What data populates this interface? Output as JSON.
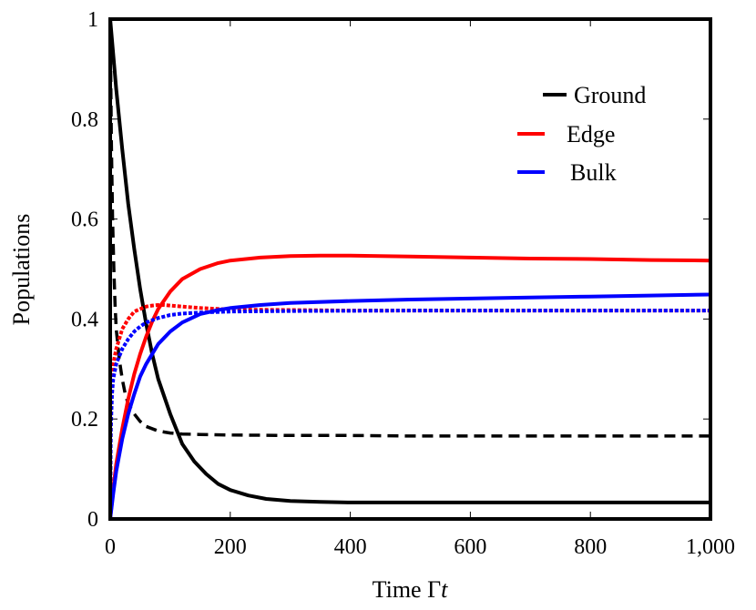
{
  "chart_data": {
    "type": "line",
    "title": "",
    "xlabel_prefix": "Time ",
    "xlabel_greek": "Γ",
    "xlabel_var": "t",
    "ylabel": "Populations",
    "xlim": [
      0,
      1000
    ],
    "ylim": [
      0,
      1
    ],
    "grid": false,
    "legend_position": "top-right",
    "x_ticks": [
      0,
      200,
      400,
      600,
      800,
      1000
    ],
    "x_tick_labels": [
      "0",
      "200",
      "400",
      "600",
      "800",
      "1,000"
    ],
    "y_ticks": [
      0,
      0.2,
      0.4,
      0.6,
      0.8,
      1
    ],
    "y_tick_labels": [
      "0",
      "0.2",
      "0.4",
      "0.6",
      "0.8",
      "1"
    ],
    "legend": [
      {
        "label": "Ground",
        "color": "#000000"
      },
      {
        "label": "Edge",
        "color": "#ff0000"
      },
      {
        "label": "Bulk",
        "color": "#0000ff"
      }
    ],
    "series": [
      {
        "name": "Ground",
        "color": "#000000",
        "style": "solid",
        "points": [
          [
            0,
            1
          ],
          [
            5,
            0.93
          ],
          [
            10,
            0.86
          ],
          [
            20,
            0.74
          ],
          [
            30,
            0.63
          ],
          [
            40,
            0.54
          ],
          [
            50,
            0.46
          ],
          [
            60,
            0.39
          ],
          [
            70,
            0.33
          ],
          [
            80,
            0.28
          ],
          [
            100,
            0.21
          ],
          [
            120,
            0.15
          ],
          [
            140,
            0.115
          ],
          [
            160,
            0.09
          ],
          [
            180,
            0.07
          ],
          [
            200,
            0.058
          ],
          [
            230,
            0.047
          ],
          [
            260,
            0.04
          ],
          [
            300,
            0.036
          ],
          [
            350,
            0.034
          ],
          [
            400,
            0.033
          ],
          [
            500,
            0.033
          ],
          [
            600,
            0.033
          ],
          [
            700,
            0.033
          ],
          [
            800,
            0.033
          ],
          [
            900,
            0.033
          ],
          [
            1000,
            0.033
          ]
        ]
      },
      {
        "name": "Ground",
        "color": "#000000",
        "style": "dashed",
        "points": [
          [
            0,
            1
          ],
          [
            2,
            0.75
          ],
          [
            4,
            0.6
          ],
          [
            6,
            0.5
          ],
          [
            8,
            0.43
          ],
          [
            10,
            0.38
          ],
          [
            15,
            0.32
          ],
          [
            20,
            0.28
          ],
          [
            25,
            0.25
          ],
          [
            30,
            0.23
          ],
          [
            40,
            0.21
          ],
          [
            50,
            0.195
          ],
          [
            60,
            0.185
          ],
          [
            80,
            0.176
          ],
          [
            100,
            0.172
          ],
          [
            120,
            0.17
          ],
          [
            150,
            0.169
          ],
          [
            200,
            0.168
          ],
          [
            300,
            0.167
          ],
          [
            400,
            0.167
          ],
          [
            500,
            0.166
          ],
          [
            600,
            0.166
          ],
          [
            700,
            0.166
          ],
          [
            800,
            0.166
          ],
          [
            900,
            0.166
          ],
          [
            1000,
            0.166
          ]
        ]
      },
      {
        "name": "Edge",
        "color": "#ff0000",
        "style": "solid",
        "points": [
          [
            0,
            0
          ],
          [
            5,
            0.06
          ],
          [
            10,
            0.11
          ],
          [
            20,
            0.18
          ],
          [
            30,
            0.24
          ],
          [
            40,
            0.29
          ],
          [
            50,
            0.33
          ],
          [
            60,
            0.365
          ],
          [
            70,
            0.395
          ],
          [
            80,
            0.42
          ],
          [
            100,
            0.455
          ],
          [
            120,
            0.48
          ],
          [
            150,
            0.5
          ],
          [
            180,
            0.512
          ],
          [
            200,
            0.517
          ],
          [
            250,
            0.523
          ],
          [
            300,
            0.526
          ],
          [
            350,
            0.527
          ],
          [
            400,
            0.527
          ],
          [
            500,
            0.525
          ],
          [
            600,
            0.523
          ],
          [
            700,
            0.521
          ],
          [
            800,
            0.52
          ],
          [
            900,
            0.518
          ],
          [
            1000,
            0.517
          ]
        ]
      },
      {
        "name": "Edge",
        "color": "#ff0000",
        "style": "dotted",
        "points": [
          [
            0,
            0
          ],
          [
            1,
            0.2
          ],
          [
            3,
            0.28
          ],
          [
            5,
            0.31
          ],
          [
            10,
            0.34
          ],
          [
            20,
            0.38
          ],
          [
            30,
            0.4
          ],
          [
            40,
            0.415
          ],
          [
            50,
            0.42
          ],
          [
            60,
            0.425
          ],
          [
            70,
            0.427
          ],
          [
            80,
            0.428
          ],
          [
            90,
            0.428
          ],
          [
            100,
            0.427
          ],
          [
            120,
            0.425
          ],
          [
            150,
            0.422
          ],
          [
            200,
            0.419
          ],
          [
            300,
            0.418
          ],
          [
            400,
            0.417
          ],
          [
            500,
            0.417
          ],
          [
            700,
            0.417
          ],
          [
            1000,
            0.417
          ]
        ]
      },
      {
        "name": "Bulk",
        "color": "#0000ff",
        "style": "solid",
        "points": [
          [
            0,
            0
          ],
          [
            5,
            0.05
          ],
          [
            10,
            0.095
          ],
          [
            20,
            0.16
          ],
          [
            30,
            0.21
          ],
          [
            40,
            0.25
          ],
          [
            50,
            0.285
          ],
          [
            60,
            0.31
          ],
          [
            70,
            0.33
          ],
          [
            80,
            0.35
          ],
          [
            100,
            0.375
          ],
          [
            120,
            0.393
          ],
          [
            150,
            0.41
          ],
          [
            180,
            0.418
          ],
          [
            200,
            0.422
          ],
          [
            250,
            0.428
          ],
          [
            300,
            0.432
          ],
          [
            400,
            0.436
          ],
          [
            500,
            0.439
          ],
          [
            600,
            0.441
          ],
          [
            700,
            0.443
          ],
          [
            800,
            0.445
          ],
          [
            900,
            0.447
          ],
          [
            1000,
            0.449
          ]
        ]
      },
      {
        "name": "Bulk",
        "color": "#0000ff",
        "style": "dotted",
        "points": [
          [
            0,
            0
          ],
          [
            1,
            0.18
          ],
          [
            3,
            0.25
          ],
          [
            5,
            0.28
          ],
          [
            10,
            0.31
          ],
          [
            20,
            0.34
          ],
          [
            30,
            0.36
          ],
          [
            40,
            0.375
          ],
          [
            50,
            0.385
          ],
          [
            60,
            0.393
          ],
          [
            80,
            0.402
          ],
          [
            100,
            0.408
          ],
          [
            120,
            0.411
          ],
          [
            150,
            0.413
          ],
          [
            200,
            0.415
          ],
          [
            300,
            0.416
          ],
          [
            500,
            0.417
          ],
          [
            700,
            0.417
          ],
          [
            1000,
            0.417
          ]
        ]
      }
    ]
  }
}
